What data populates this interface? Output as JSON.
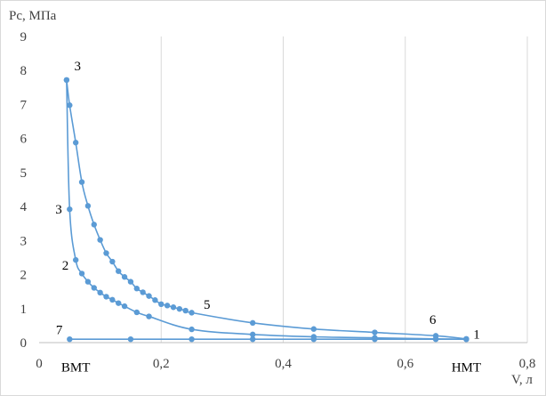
{
  "chart_data": {
    "type": "scatter",
    "ylabel": "Pc,  МПа",
    "xlabel": "V, л",
    "xlim": [
      0,
      0.8
    ],
    "ylim": [
      0,
      9
    ],
    "x_ticks": [
      "0",
      "0,2",
      "0,4",
      "0,6",
      "0,8"
    ],
    "x_tick_values": [
      0,
      0.2,
      0.4,
      0.6,
      0.8
    ],
    "y_ticks": [
      "0",
      "1",
      "2",
      "3",
      "4",
      "5",
      "6",
      "7",
      "8",
      "9"
    ],
    "y_tick_values": [
      0,
      1,
      2,
      3,
      4,
      5,
      6,
      7,
      8,
      9
    ],
    "grid": "vertical",
    "color": "#5b9bd5",
    "series": [
      {
        "points": [
          [
            0.7,
            0.11
          ],
          [
            0.65,
            0.2
          ],
          [
            0.55,
            0.3
          ],
          [
            0.45,
            0.4
          ],
          [
            0.35,
            0.58
          ],
          [
            0.25,
            0.88
          ],
          [
            0.24,
            0.94
          ],
          [
            0.23,
            0.99
          ],
          [
            0.22,
            1.04
          ],
          [
            0.21,
            1.09
          ],
          [
            0.2,
            1.13
          ],
          [
            0.19,
            1.25
          ],
          [
            0.18,
            1.37
          ],
          [
            0.17,
            1.48
          ],
          [
            0.16,
            1.59
          ],
          [
            0.15,
            1.79
          ],
          [
            0.14,
            1.93
          ],
          [
            0.13,
            2.1
          ],
          [
            0.12,
            2.38
          ],
          [
            0.11,
            2.63
          ],
          [
            0.1,
            3.02
          ],
          [
            0.09,
            3.47
          ],
          [
            0.08,
            4.02
          ],
          [
            0.07,
            4.72
          ],
          [
            0.06,
            5.88
          ],
          [
            0.05,
            6.98
          ],
          [
            0.045,
            7.72
          ]
        ]
      },
      {
        "points": [
          [
            0.045,
            7.72
          ],
          [
            0.05,
            3.92
          ],
          [
            0.06,
            2.43
          ],
          [
            0.07,
            2.03
          ],
          [
            0.08,
            1.79
          ],
          [
            0.09,
            1.61
          ],
          [
            0.1,
            1.47
          ],
          [
            0.11,
            1.35
          ],
          [
            0.12,
            1.26
          ],
          [
            0.13,
            1.16
          ],
          [
            0.14,
            1.07
          ],
          [
            0.16,
            0.89
          ],
          [
            0.18,
            0.77
          ],
          [
            0.25,
            0.39
          ],
          [
            0.35,
            0.24
          ],
          [
            0.45,
            0.17
          ],
          [
            0.55,
            0.14
          ],
          [
            0.65,
            0.11
          ],
          [
            0.7,
            0.1
          ]
        ]
      },
      {
        "points": [
          [
            0.05,
            0.1
          ],
          [
            0.15,
            0.1
          ],
          [
            0.25,
            0.1
          ],
          [
            0.35,
            0.1
          ],
          [
            0.45,
            0.1
          ],
          [
            0.55,
            0.1
          ],
          [
            0.65,
            0.1
          ],
          [
            0.7,
            0.1
          ]
        ]
      }
    ],
    "annotations": [
      {
        "text": "3",
        "x": 0.063,
        "y": 8.0
      },
      {
        "text": "3",
        "x": 0.032,
        "y": 3.8
      },
      {
        "text": "2",
        "x": 0.043,
        "y": 2.15
      },
      {
        "text": "5",
        "x": 0.275,
        "y": 1.0
      },
      {
        "text": "6",
        "x": 0.645,
        "y": 0.55
      },
      {
        "text": "1",
        "x": 0.717,
        "y": 0.12
      },
      {
        "text": "7",
        "x": 0.033,
        "y": 0.25
      },
      {
        "text": "ВМТ",
        "x": 0.06,
        "y": -0.85
      },
      {
        "text": "НМТ",
        "x": 0.7,
        "y": -0.85
      }
    ]
  }
}
